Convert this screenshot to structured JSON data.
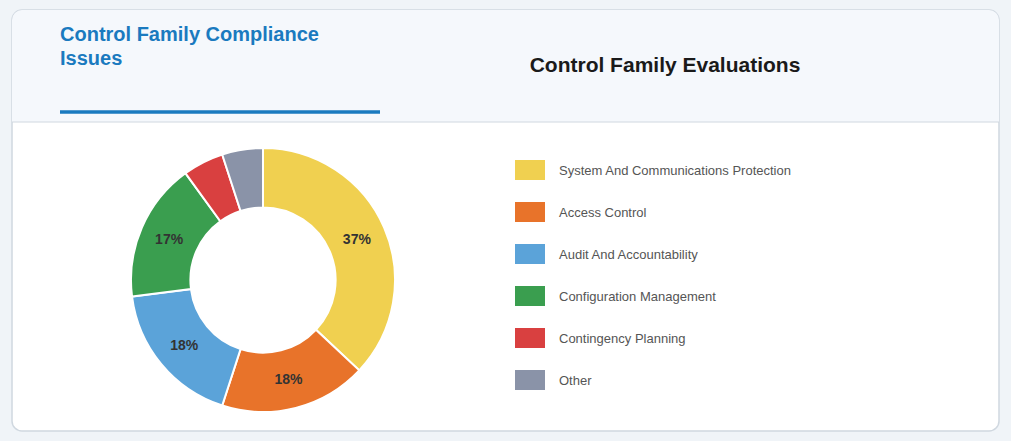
{
  "chart_data": {
    "type": "pie",
    "title": "Control Family Compliance\nIssues",
    "subtitle": "Control Family Evaluations",
    "categories": [
      "System And Communications Protection",
      "Access Control",
      "Audit And Accountability",
      "Configuration Management",
      "Contingency Planning",
      "Other"
    ],
    "values": [
      37,
      18,
      18,
      17,
      5,
      5
    ],
    "value_labels": [
      "37%",
      "18%",
      "18%",
      "17%",
      null,
      null
    ],
    "colors": [
      "#f0d050",
      "#e8732a",
      "#5ba3d9",
      "#3a9e4f",
      "#d94040",
      "#8a93a8"
    ],
    "data_labels": true,
    "legend": "right"
  }
}
